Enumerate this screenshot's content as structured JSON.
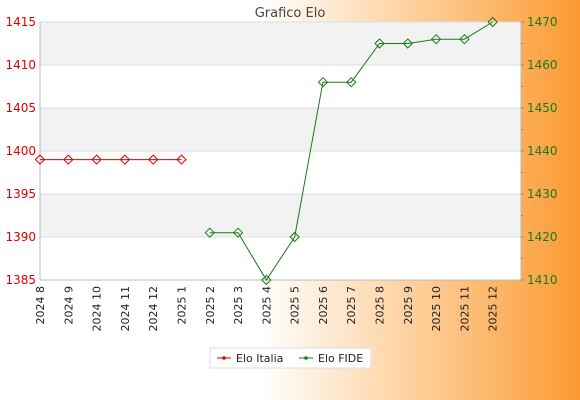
{
  "chart_data": {
    "type": "line",
    "title": "Grafico Elo",
    "categories": [
      "2024 8",
      "2024 9",
      "2024 10",
      "2024 11",
      "2024 12",
      "2025 1",
      "2025 2",
      "2025 3",
      "2025 4",
      "2025 5",
      "2025 6",
      "2025 7",
      "2025 8",
      "2025 9",
      "2025 10",
      "2025 11",
      "2025 12"
    ],
    "series": [
      {
        "name": "Elo Italia",
        "axis": "left",
        "color": "#e00000",
        "values": [
          1399,
          1399,
          1399,
          1399,
          1399,
          1399,
          null,
          null,
          null,
          null,
          null,
          null,
          null,
          null,
          null,
          null,
          null
        ]
      },
      {
        "name": "Elo FIDE",
        "axis": "right",
        "color": "#1a7a1a",
        "values": [
          null,
          null,
          null,
          null,
          null,
          null,
          1421,
          1421,
          1410,
          1420,
          1456,
          1456,
          1465,
          1465,
          1466,
          1466,
          1470
        ]
      }
    ],
    "y_left": {
      "min": 1385,
      "max": 1415,
      "ticks": [
        1385,
        1390,
        1395,
        1400,
        1405,
        1410,
        1415
      ],
      "color": "#e00000"
    },
    "y_right": {
      "min": 1410,
      "max": 1470,
      "ticks": [
        1410,
        1420,
        1430,
        1440,
        1450,
        1460,
        1470
      ],
      "color": "#1a7a1a"
    },
    "grid": true,
    "legend_position": "bottom"
  }
}
